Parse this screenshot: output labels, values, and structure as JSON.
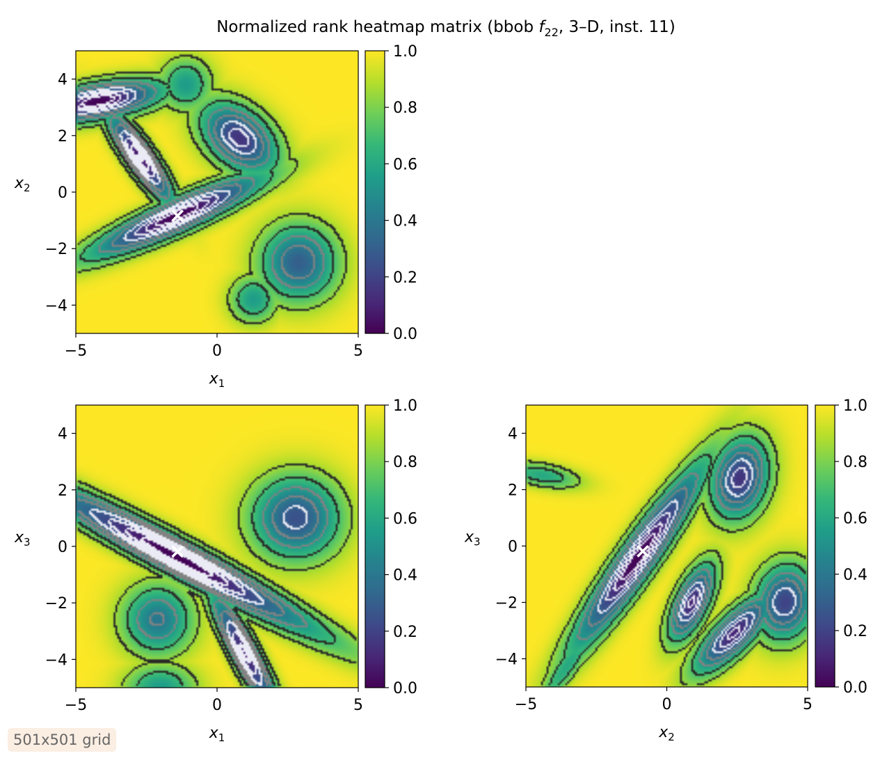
{
  "figure": {
    "title_prefix": "Normalized rank heatmap matrix (bbob ",
    "title_fn": "f",
    "title_sub": "22",
    "title_suffix": ", 3–D, inst. 11)",
    "badge": "501x501 grid"
  },
  "colorbar": {
    "ticks": [
      "0.0",
      "0.2",
      "0.4",
      "0.6",
      "0.8",
      "1.0"
    ],
    "colormap": "viridis"
  },
  "chart_data": [
    {
      "type": "heatmap",
      "panel": "x1-x2",
      "xlabel_var": "x",
      "xlabel_sub": "1",
      "ylabel_var": "x",
      "ylabel_sub": "2",
      "xlim": [
        -5,
        5
      ],
      "ylim": [
        -5,
        5
      ],
      "xticks": [
        "−5",
        "0",
        "5"
      ],
      "yticks": [
        "−4",
        "−2",
        "0",
        "2",
        "4"
      ],
      "zlim": [
        0,
        1
      ],
      "optimum_marker": {
        "x": -1.4,
        "y": -0.85,
        "symbol": "×"
      },
      "basins": [
        {
          "cx": -4.2,
          "cy": 3.2,
          "sx": 2.2,
          "sy": 0.6,
          "angle": 10,
          "depth": 1.0
        },
        {
          "cx": -2.7,
          "cy": 1.2,
          "sx": 1.9,
          "sy": 0.45,
          "angle": -55,
          "depth": 0.95
        },
        {
          "cx": -1.4,
          "cy": -0.85,
          "sx": 3.2,
          "sy": 0.55,
          "angle": 24,
          "depth": 1.0
        },
        {
          "cx": 0.8,
          "cy": 1.9,
          "sx": 1.5,
          "sy": 0.95,
          "angle": -40,
          "depth": 0.85
        },
        {
          "cx": 2.9,
          "cy": -2.5,
          "sx": 1.3,
          "sy": 1.3,
          "angle": 0,
          "depth": 0.7
        },
        {
          "cx": 1.3,
          "cy": -3.8,
          "sx": 0.8,
          "sy": 0.8,
          "angle": 0,
          "depth": 0.45
        },
        {
          "cx": -1.1,
          "cy": 3.8,
          "sx": 0.9,
          "sy": 0.9,
          "angle": 0,
          "depth": 0.45
        }
      ]
    },
    {
      "type": "heatmap",
      "panel": "x1-x3",
      "xlabel_var": "x",
      "xlabel_sub": "1",
      "ylabel_var": "x",
      "ylabel_sub": "3",
      "xlim": [
        -5,
        5
      ],
      "ylim": [
        -5,
        5
      ],
      "xticks": [
        "−5",
        "0",
        "5"
      ],
      "yticks": [
        "−4",
        "−2",
        "0",
        "2",
        "4"
      ],
      "zlim": [
        0,
        1
      ],
      "optimum_marker": {
        "x": -1.4,
        "y": -0.2,
        "symbol": "×"
      },
      "basins": [
        {
          "cx": -1.4,
          "cy": -0.4,
          "sx": 5.5,
          "sy": 0.6,
          "angle": -28,
          "depth": 1.0
        },
        {
          "cx": 1.0,
          "cy": -3.8,
          "sx": 2.4,
          "sy": 0.45,
          "angle": -62,
          "depth": 0.9
        },
        {
          "cx": 2.8,
          "cy": 1.0,
          "sx": 1.5,
          "sy": 1.4,
          "angle": 0,
          "depth": 0.75
        },
        {
          "cx": -2.1,
          "cy": -2.6,
          "sx": 1.2,
          "sy": 1.2,
          "angle": 0,
          "depth": 0.6
        },
        {
          "cx": -2.0,
          "cy": -5.0,
          "sx": 1.2,
          "sy": 0.8,
          "angle": 0,
          "depth": 0.45
        }
      ]
    },
    {
      "type": "heatmap",
      "panel": "x2-x3",
      "xlabel_var": "x",
      "xlabel_sub": "2",
      "ylabel_var": "x",
      "ylabel_sub": "3",
      "xlim": [
        -5,
        5
      ],
      "ylim": [
        -5,
        5
      ],
      "xticks": [
        "−5",
        "0",
        "5"
      ],
      "yticks": [
        "−4",
        "−2",
        "0",
        "2",
        "4"
      ],
      "zlim": [
        0,
        1
      ],
      "optimum_marker": {
        "x": -0.85,
        "y": -0.2,
        "symbol": "×"
      },
      "basins": [
        {
          "cx": -1.0,
          "cy": -0.4,
          "sx": 3.8,
          "sy": 0.6,
          "angle": 55,
          "depth": 1.0
        },
        {
          "cx": 2.6,
          "cy": 2.4,
          "sx": 1.4,
          "sy": 0.95,
          "angle": 75,
          "depth": 0.85
        },
        {
          "cx": 0.9,
          "cy": -2.0,
          "sx": 1.4,
          "sy": 0.55,
          "angle": 65,
          "depth": 0.9
        },
        {
          "cx": 2.4,
          "cy": -3.1,
          "sx": 1.8,
          "sy": 0.6,
          "angle": 45,
          "depth": 0.9
        },
        {
          "cx": 4.2,
          "cy": -2.0,
          "sx": 1.3,
          "sy": 1.0,
          "angle": 80,
          "depth": 0.8
        },
        {
          "cx": -4.4,
          "cy": 2.5,
          "sx": 1.3,
          "sy": 0.4,
          "angle": -10,
          "depth": 0.4
        },
        {
          "cx": -3.5,
          "cy": -4.2,
          "sx": 1.8,
          "sy": 0.4,
          "angle": 55,
          "depth": 0.4
        }
      ]
    }
  ]
}
